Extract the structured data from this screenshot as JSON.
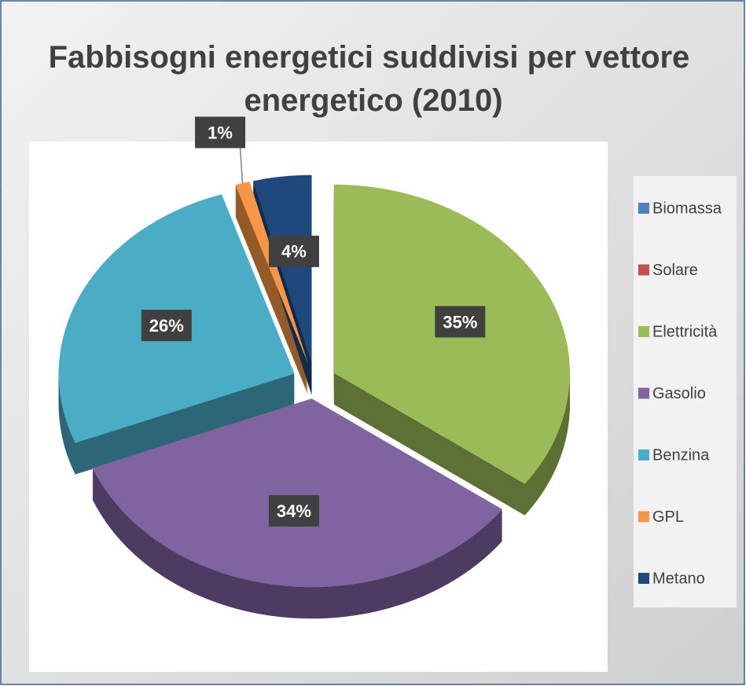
{
  "chart_data": {
    "type": "pie",
    "title": "Fabbisogni energetici suddivisi per vettore energetico (2010)",
    "categories": [
      "Biomassa",
      "Solare",
      "Elettricità",
      "Gasolio",
      "Benzina",
      "GPL",
      "Metano"
    ],
    "values": [
      0,
      0,
      35,
      34,
      26,
      1,
      4
    ],
    "value_labels": [
      null,
      null,
      "35%",
      "34%",
      "26%",
      "1%",
      "4%"
    ],
    "colors": [
      "#4f81bd",
      "#c0504d",
      "#9bbb59",
      "#8064a2",
      "#4bacc6",
      "#f79646",
      "#1f497d"
    ],
    "legend": "right"
  }
}
